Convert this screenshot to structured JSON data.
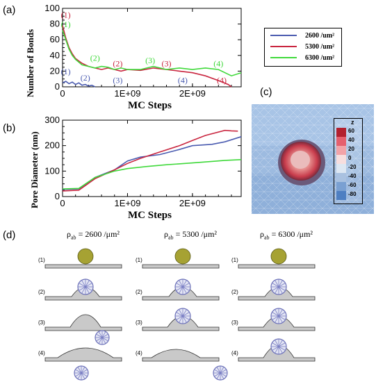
{
  "panel_letters": {
    "a": "(a)",
    "b": "(b)",
    "c": "(c)",
    "d": "(d)"
  },
  "legend": {
    "entries": [
      {
        "label": "2600 /um²",
        "color": "#4a5bb0"
      },
      {
        "label": "5300 /um²",
        "color": "#c9253f"
      },
      {
        "label": "6300 /um²",
        "color": "#3fd93a"
      }
    ]
  },
  "chart_data": [
    {
      "type": "line",
      "panel": "(a)",
      "xlabel": "MC Steps",
      "ylabel": "Number of Bonds",
      "xlim": [
        0,
        2750000000.0
      ],
      "ylim": [
        0,
        100
      ],
      "xticks": [
        {
          "v": 0,
          "label": "0"
        },
        {
          "v": 1000000000.0,
          "label": "1E+09"
        },
        {
          "v": 2000000000.0,
          "label": "2E+09"
        }
      ],
      "yticks": [
        {
          "v": 0,
          "label": "0"
        },
        {
          "v": 20,
          "label": "20"
        },
        {
          "v": 40,
          "label": "40"
        },
        {
          "v": 60,
          "label": "60"
        },
        {
          "v": 80,
          "label": "80"
        },
        {
          "v": 100,
          "label": "100"
        }
      ],
      "series": [
        {
          "name": "2600 /um²",
          "color": "#4a5bb0",
          "x": [
            0,
            50000000.0,
            100000000.0,
            150000000.0,
            200000000.0,
            250000000.0,
            300000000.0,
            350000000.0,
            400000000.0,
            450000000.0,
            500000000.0
          ],
          "y": [
            5,
            7,
            4,
            6,
            3,
            5,
            2,
            3,
            1,
            2,
            0
          ]
        },
        {
          "name": "5300 /um²",
          "color": "#c9253f",
          "x": [
            0,
            50000000.0,
            100000000.0,
            150000000.0,
            200000000.0,
            300000000.0,
            400000000.0,
            500000000.0,
            600000000.0,
            700000000.0,
            800000000.0,
            900000000.0,
            1000000000.0,
            1200000000.0,
            1400000000.0,
            1600000000.0,
            1800000000.0,
            2000000000.0,
            2200000000.0,
            2400000000.0,
            2550000000.0,
            2600000000.0
          ],
          "y": [
            78,
            62,
            50,
            42,
            36,
            30,
            26,
            24,
            22,
            24,
            22,
            20,
            22,
            21,
            24,
            22,
            20,
            18,
            14,
            8,
            3,
            0
          ]
        },
        {
          "name": "6300 /um²",
          "color": "#3fd93a",
          "x": [
            0,
            50000000.0,
            100000000.0,
            150000000.0,
            200000000.0,
            300000000.0,
            400000000.0,
            500000000.0,
            600000000.0,
            700000000.0,
            800000000.0,
            900000000.0,
            1000000000.0,
            1200000000.0,
            1400000000.0,
            1600000000.0,
            1800000000.0,
            2000000000.0,
            2200000000.0,
            2400000000.0,
            2600000000.0,
            2750000000.0
          ],
          "y": [
            72,
            60,
            48,
            40,
            35,
            28,
            26,
            24,
            26,
            25,
            22,
            24,
            22,
            22,
            26,
            22,
            24,
            22,
            24,
            22,
            14,
            18
          ]
        }
      ],
      "annotations": [
        {
          "text": "(1)",
          "x": 50000000.0,
          "y": 88,
          "color": "#c9253f"
        },
        {
          "text": "(1)",
          "x": 50000000.0,
          "y": 76,
          "color": "#3fd93a"
        },
        {
          "text": "(1)",
          "x": 50000000.0,
          "y": 16,
          "color": "#4a5bb0"
        },
        {
          "text": "(2)",
          "x": 350000000.0,
          "y": 8,
          "color": "#4a5bb0"
        },
        {
          "text": "(2)",
          "x": 500000000.0,
          "y": 33,
          "color": "#3fd93a"
        },
        {
          "text": "(2)",
          "x": 850000000.0,
          "y": 26,
          "color": "#c9253f"
        },
        {
          "text": "(3)",
          "x": 850000000.0,
          "y": 5,
          "color": "#4a5bb0"
        },
        {
          "text": "(3)",
          "x": 1350000000.0,
          "y": 30,
          "color": "#3fd93a"
        },
        {
          "text": "(3)",
          "x": 1600000000.0,
          "y": 26,
          "color": "#c9253f"
        },
        {
          "text": "(4)",
          "x": 1850000000.0,
          "y": 5,
          "color": "#4a5bb0"
        },
        {
          "text": "(4)",
          "x": 2400000000.0,
          "y": 26,
          "color": "#3fd93a"
        },
        {
          "text": "(4)",
          "x": 2450000000.0,
          "y": 5,
          "color": "#c9253f"
        }
      ]
    },
    {
      "type": "line",
      "panel": "(b)",
      "xlabel": "MC Steps",
      "ylabel": "Pore Diameter (nm)",
      "xlim": [
        0,
        2750000000.0
      ],
      "ylim": [
        0,
        300
      ],
      "xticks": [
        {
          "v": 0,
          "label": "0"
        },
        {
          "v": 1000000000.0,
          "label": "1E+09"
        },
        {
          "v": 2000000000.0,
          "label": "2E+09"
        }
      ],
      "yticks": [
        {
          "v": 0,
          "label": "0"
        },
        {
          "v": 100,
          "label": "100"
        },
        {
          "v": 200,
          "label": "200"
        },
        {
          "v": 300,
          "label": "300"
        }
      ],
      "series": [
        {
          "name": "2600 /um²",
          "color": "#4a5bb0",
          "x": [
            0,
            250000000.0,
            500000000.0,
            800000000.0,
            1000000000.0,
            1200000000.0,
            1500000000.0,
            1800000000.0,
            2000000000.0,
            2300000000.0,
            2500000000.0,
            2750000000.0
          ],
          "y": [
            28,
            30,
            75,
            105,
            140,
            155,
            165,
            185,
            200,
            205,
            215,
            235
          ]
        },
        {
          "name": "5300 /um²",
          "color": "#c9253f",
          "x": [
            0,
            250000000.0,
            500000000.0,
            800000000.0,
            1000000000.0,
            1200000000.0,
            1500000000.0,
            1800000000.0,
            2000000000.0,
            2200000000.0,
            2500000000.0,
            2600000000.0,
            2700000000.0
          ],
          "y": [
            22,
            25,
            70,
            105,
            130,
            150,
            175,
            200,
            220,
            240,
            260,
            258,
            257
          ]
        },
        {
          "name": "6300 /um²",
          "color": "#3fd93a",
          "x": [
            0,
            250000000.0,
            500000000.0,
            800000000.0,
            1000000000.0,
            1300000000.0,
            1600000000.0,
            2000000000.0,
            2300000000.0,
            2500000000.0,
            2750000000.0
          ],
          "y": [
            30,
            32,
            75,
            100,
            110,
            118,
            125,
            132,
            138,
            142,
            145
          ]
        }
      ]
    }
  ],
  "colorbar": {
    "title": "z",
    "labels": [
      "60",
      "40",
      "20",
      "0",
      "-20",
      "-40",
      "-60",
      "-80"
    ],
    "colors": [
      "#b3202f",
      "#e5606e",
      "#f2a3a8",
      "#f7dede",
      "#dde7f2",
      "#a9c1e0",
      "#7aa0d2",
      "#4e7fc2"
    ]
  },
  "panel_d": {
    "columns": [
      {
        "title": "ρ",
        "sub": "ab",
        "rest": " = 2600 /μm²"
      },
      {
        "title": "ρ",
        "sub": "ab",
        "rest": " = 5300 /μm²"
      },
      {
        "title": "ρ",
        "sub": "ab",
        "rest": " = 6300 /μm²"
      }
    ],
    "rows": [
      "(1)",
      "(2)",
      "(3)",
      "(4)"
    ]
  }
}
